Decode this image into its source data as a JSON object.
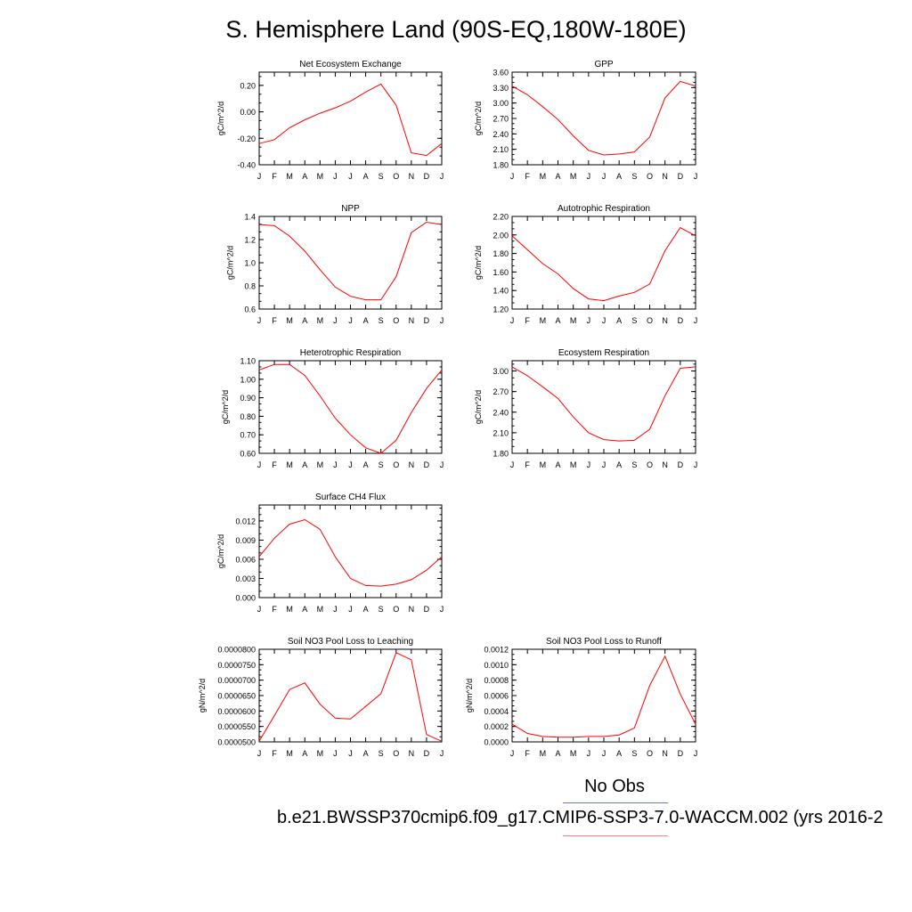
{
  "title": "S. Hemisphere Land (90S-EQ,180W-180E)",
  "legend": {
    "obs_label": "No Obs",
    "case_label": "b.e21.BWSSP370cmip6.f09_g17.CMIP6-SSP3-7.0-WACCM.002 (yrs 2016-2",
    "obs_color": "#6b6bff",
    "case_color": "#ff8080"
  },
  "line_color": "#ff0000",
  "chart_data": [
    {
      "type": "line",
      "title": "Net Ecosystem Exchange",
      "ylabel": "gC/m^2/d",
      "categories": [
        "J",
        "F",
        "M",
        "A",
        "M",
        "J",
        "J",
        "A",
        "S",
        "O",
        "N",
        "D",
        "J"
      ],
      "values": [
        -0.24,
        -0.21,
        -0.12,
        -0.06,
        -0.01,
        0.03,
        0.08,
        0.15,
        0.21,
        0.05,
        -0.31,
        -0.33,
        -0.24
      ],
      "ylim": [
        -0.4,
        0.3
      ],
      "yticks": [
        "0.20",
        "0.00",
        "-0.20",
        "-0.40"
      ],
      "ytick_values": [
        0.2,
        0.0,
        -0.2,
        -0.4
      ],
      "ydecimals": 2
    },
    {
      "type": "line",
      "title": "GPP",
      "ylabel": "gC/m^2/d",
      "categories": [
        "J",
        "F",
        "M",
        "A",
        "M",
        "J",
        "J",
        "A",
        "S",
        "O",
        "N",
        "D",
        "J"
      ],
      "values": [
        3.33,
        3.16,
        2.93,
        2.68,
        2.36,
        2.08,
        1.99,
        2.01,
        2.05,
        2.34,
        3.1,
        3.42,
        3.33
      ],
      "ylim": [
        1.8,
        3.6
      ],
      "yticks": [
        "3.60",
        "3.30",
        "3.00",
        "2.70",
        "2.40",
        "2.10",
        "1.80"
      ],
      "ytick_values": [
        3.6,
        3.3,
        3.0,
        2.7,
        2.4,
        2.1,
        1.8
      ],
      "ydecimals": 2
    },
    {
      "type": "line",
      "title": "NPP",
      "ylabel": "gC/m^2/d",
      "categories": [
        "J",
        "F",
        "M",
        "A",
        "M",
        "J",
        "J",
        "A",
        "S",
        "O",
        "N",
        "D",
        "J"
      ],
      "values": [
        1.33,
        1.32,
        1.23,
        1.1,
        0.94,
        0.79,
        0.71,
        0.68,
        0.68,
        0.88,
        1.26,
        1.35,
        1.33
      ],
      "ylim": [
        0.6,
        1.4
      ],
      "yticks": [
        "1.4",
        "1.2",
        "1.0",
        "0.8",
        "0.6"
      ],
      "ytick_values": [
        1.4,
        1.2,
        1.0,
        0.8,
        0.6
      ],
      "ydecimals": 1
    },
    {
      "type": "line",
      "title": "Autotrophic Respiration",
      "ylabel": "gC/m^2/d",
      "categories": [
        "J",
        "F",
        "M",
        "A",
        "M",
        "J",
        "J",
        "A",
        "S",
        "O",
        "N",
        "D",
        "J"
      ],
      "values": [
        1.99,
        1.84,
        1.69,
        1.58,
        1.42,
        1.31,
        1.29,
        1.34,
        1.38,
        1.47,
        1.83,
        2.08,
        1.99
      ],
      "ylim": [
        1.2,
        2.2
      ],
      "yticks": [
        "2.20",
        "2.00",
        "1.80",
        "1.60",
        "1.40",
        "1.20"
      ],
      "ytick_values": [
        2.2,
        2.0,
        1.8,
        1.6,
        1.4,
        1.2
      ],
      "ydecimals": 2
    },
    {
      "type": "line",
      "title": "Heterotrophic Respiration",
      "ylabel": "gC/m^2/d",
      "categories": [
        "J",
        "F",
        "M",
        "A",
        "M",
        "J",
        "J",
        "A",
        "S",
        "O",
        "N",
        "D",
        "J"
      ],
      "values": [
        1.05,
        1.08,
        1.08,
        1.02,
        0.91,
        0.79,
        0.7,
        0.63,
        0.6,
        0.67,
        0.82,
        0.95,
        1.05
      ],
      "ylim": [
        0.6,
        1.1
      ],
      "yticks": [
        "1.10",
        "1.00",
        "0.90",
        "0.80",
        "0.70",
        "0.60"
      ],
      "ytick_values": [
        1.1,
        1.0,
        0.9,
        0.8,
        0.7,
        0.6
      ],
      "ydecimals": 2
    },
    {
      "type": "line",
      "title": "Ecosystem Respiration",
      "ylabel": "gC/m^2/d",
      "categories": [
        "J",
        "F",
        "M",
        "A",
        "M",
        "J",
        "J",
        "A",
        "S",
        "O",
        "N",
        "D",
        "J"
      ],
      "values": [
        3.06,
        2.93,
        2.77,
        2.6,
        2.33,
        2.1,
        2.0,
        1.98,
        1.99,
        2.15,
        2.64,
        3.04,
        3.06
      ],
      "ylim": [
        1.8,
        3.15
      ],
      "yticks": [
        "3.00",
        "2.70",
        "2.40",
        "2.10",
        "1.80"
      ],
      "ytick_values": [
        3.0,
        2.7,
        2.4,
        2.1,
        1.8
      ],
      "ydecimals": 2
    },
    {
      "type": "line",
      "title": "Surface CH4 Flux",
      "ylabel": "gC/m^2/d",
      "categories": [
        "J",
        "F",
        "M",
        "A",
        "M",
        "J",
        "J",
        "A",
        "S",
        "O",
        "N",
        "D",
        "J"
      ],
      "values": [
        0.0064,
        0.0093,
        0.0115,
        0.0122,
        0.0107,
        0.0064,
        0.003,
        0.0019,
        0.0018,
        0.0021,
        0.0028,
        0.0043,
        0.0064
      ],
      "ylim": [
        0.0,
        0.0145
      ],
      "yticks": [
        "0.012",
        "0.009",
        "0.006",
        "0.003",
        "0.000"
      ],
      "ytick_values": [
        0.012,
        0.009,
        0.006,
        0.003,
        0.0
      ],
      "ydecimals": 3
    },
    {
      "type": "line",
      "title": "Soil NO3 Pool Loss to Leaching",
      "ylabel": "gN/m^2/d",
      "categories": [
        "J",
        "F",
        "M",
        "A",
        "M",
        "J",
        "J",
        "A",
        "S",
        "O",
        "N",
        "D",
        "J"
      ],
      "values": [
        5.02e-05,
        5.85e-05,
        6.7e-05,
        6.91e-05,
        6.22e-05,
        5.77e-05,
        5.74e-05,
        6.15e-05,
        6.56e-05,
        7.89e-05,
        7.66e-05,
        5.24e-05,
        5.02e-05
      ],
      "ylim": [
        5e-05,
        8e-05
      ],
      "yticks": [
        "0.0000800",
        "0.0000750",
        "0.0000700",
        "0.0000650",
        "0.0000600",
        "0.0000550",
        "0.0000500"
      ],
      "ytick_values": [
        8e-05,
        7.5e-05,
        7e-05,
        6.5e-05,
        6e-05,
        5.5e-05,
        5e-05
      ],
      "ydecimals": 7
    },
    {
      "type": "line",
      "title": "Soil NO3 Pool Loss to Runoff",
      "ylabel": "gN/m^2/d",
      "categories": [
        "J",
        "F",
        "M",
        "A",
        "M",
        "J",
        "J",
        "A",
        "S",
        "O",
        "N",
        "D",
        "J"
      ],
      "values": [
        0.00023,
        0.00011,
        7e-05,
        6e-05,
        6e-05,
        7e-05,
        7e-05,
        9e-05,
        0.00018,
        0.00073,
        0.00111,
        0.00062,
        0.00023
      ],
      "ylim": [
        0.0,
        0.0012
      ],
      "yticks": [
        "0.0012",
        "0.0010",
        "0.0008",
        "0.0006",
        "0.0004",
        "0.0002",
        "0.0000"
      ],
      "ytick_values": [
        0.0012,
        0.001,
        0.0008,
        0.0006,
        0.0004,
        0.0002,
        0.0
      ],
      "ydecimals": 4
    }
  ]
}
